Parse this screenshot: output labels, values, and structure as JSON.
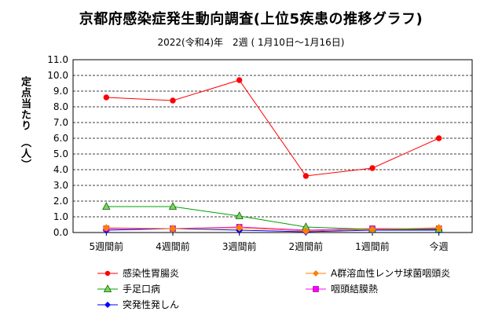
{
  "chart_data": {
    "type": "line",
    "title": "京都府感染症発生動向調査(上位5疾患の推移グラフ)",
    "subtitle": "2022(令和4)年　2週 ( 1月10日～1月16日)",
    "ylabel": "定点当たり　（人）",
    "xlabel": "",
    "categories": [
      "5週間前",
      "4週間前",
      "3週間前",
      "2週間前",
      "1週間前",
      "今週"
    ],
    "ylim": [
      0,
      11
    ],
    "ytick_step": 1,
    "yticks": [
      "0.0",
      "1.0",
      "2.0",
      "3.0",
      "4.0",
      "5.0",
      "6.0",
      "7.0",
      "8.0",
      "9.0",
      "10.0",
      "11.0"
    ],
    "grid": true,
    "legend_position": "bottom",
    "series": [
      {
        "name": "感染性胃腸炎",
        "color": "#ff0000",
        "marker": "circle",
        "values": [
          8.6,
          8.4,
          9.7,
          3.6,
          4.1,
          6.0
        ]
      },
      {
        "name": "A群溶血性レンサ球菌咽頭炎",
        "color": "#ff8000",
        "marker": "diamond",
        "values": [
          0.3,
          0.25,
          0.3,
          0.1,
          0.2,
          0.3
        ]
      },
      {
        "name": "手足口病",
        "color": "#00a000",
        "marker": "triangle",
        "values": [
          1.65,
          1.65,
          1.05,
          0.35,
          0.2,
          0.2
        ]
      },
      {
        "name": "咽頭結膜熱",
        "color": "#ff00ff",
        "marker": "square",
        "values": [
          0.25,
          0.25,
          0.35,
          0.15,
          0.25,
          0.25
        ]
      },
      {
        "name": "突発性発しん",
        "color": "#0000ff",
        "marker": "diamond",
        "values": [
          0.15,
          0.25,
          0.15,
          0.05,
          0.15,
          0.15
        ]
      }
    ]
  }
}
